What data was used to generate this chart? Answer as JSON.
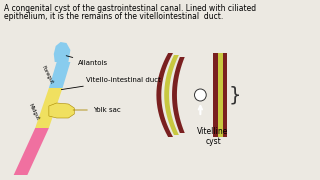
{
  "bg_color": "#ece9e2",
  "title_line1": "A congenital cyst of the gastrointestinal canal. Lined with ciliated",
  "title_line2": "epithelium, it is the remains of the vitellointestinal  duct.",
  "label_allantois": "Allantois",
  "label_vitello": "Vitello-intestinal duct",
  "label_yolk": "Yolk sac",
  "label_vitelline": "Vitelline\ncyst",
  "label_foregut": "Foregut",
  "label_midgut": "Midgut",
  "color_blue": "#88ccee",
  "color_yellow": "#f0e060",
  "color_pink": "#f070a0",
  "color_dark_red": "#7a2020",
  "color_olive": "#c8c840",
  "color_wall_inner": "#6a1818"
}
